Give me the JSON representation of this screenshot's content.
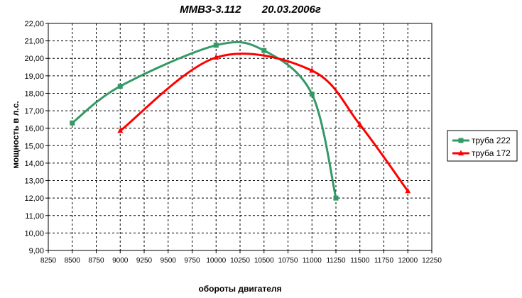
{
  "chart_data": {
    "type": "line",
    "title": "ММВЗ-3.112       20.03.2006г",
    "xlabel": "обороты двигателя",
    "ylabel": "мощность в л.с.",
    "xlim": [
      8250,
      12250
    ],
    "ylim": [
      9.0,
      22.0
    ],
    "x_ticks": [
      "8250",
      "8500",
      "8750",
      "9000",
      "9250",
      "9500",
      "9750",
      "10000",
      "10250",
      "10500",
      "10750",
      "11000",
      "11250",
      "11500",
      "11750",
      "12000",
      "12250"
    ],
    "y_ticks": [
      "9,00",
      "10,00",
      "11,00",
      "12,00",
      "13,00",
      "14,00",
      "15,00",
      "16,00",
      "17,00",
      "18,00",
      "19,00",
      "20,00",
      "21,00",
      "22,00"
    ],
    "grid": true,
    "legend_position": "right",
    "series": [
      {
        "name": "труба 222",
        "color": "#339966",
        "marker": "square",
        "x": [
          8500,
          9000,
          10000,
          10500,
          11000,
          11250
        ],
        "y": [
          16.3,
          18.4,
          20.75,
          20.45,
          17.95,
          12.0
        ]
      },
      {
        "name": "труба 172",
        "color": "#ff0000",
        "marker": "triangle",
        "x": [
          9000,
          10000,
          11000,
          11500,
          12000
        ],
        "y": [
          15.85,
          20.05,
          19.3,
          16.2,
          12.4
        ]
      }
    ]
  }
}
